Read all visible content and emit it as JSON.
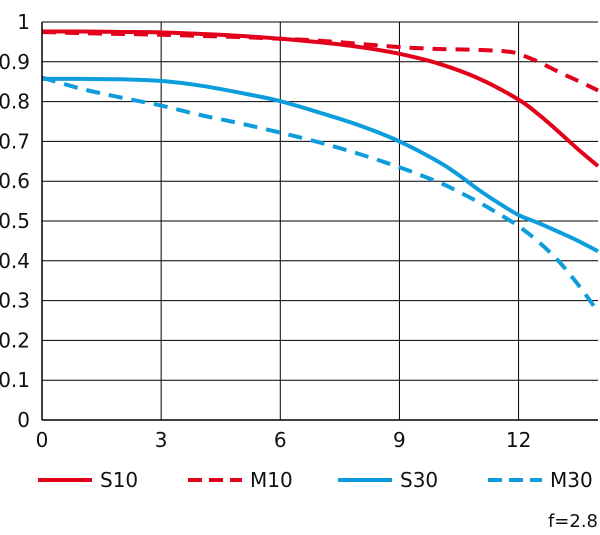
{
  "chart_data": {
    "type": "line",
    "xlim": [
      0,
      14
    ],
    "ylim": [
      0,
      1
    ],
    "x_ticks": [
      0,
      3,
      6,
      9,
      12
    ],
    "y_ticks": [
      0,
      0.1,
      0.2,
      0.3,
      0.4,
      0.5,
      0.6,
      0.7,
      0.8,
      0.9,
      1
    ],
    "x_tick_labels": [
      "0",
      "3",
      "6",
      "9",
      "12"
    ],
    "y_tick_labels": [
      "0",
      "0.1",
      "0.2",
      "0.3",
      "0.4",
      "0.5",
      "0.6",
      "0.7",
      "0.8",
      "0.9",
      "1"
    ],
    "grid": true,
    "legend_position": "bottom",
    "annotation": "f=2.8",
    "series": [
      {
        "name": "S10",
        "color": "#e3001b",
        "dash": "solid",
        "points": [
          [
            0,
            0.976
          ],
          [
            1,
            0.976
          ],
          [
            2,
            0.975
          ],
          [
            3,
            0.974
          ],
          [
            4,
            0.97
          ],
          [
            5,
            0.965
          ],
          [
            6,
            0.958
          ],
          [
            7,
            0.949
          ],
          [
            8,
            0.937
          ],
          [
            9,
            0.92
          ],
          [
            10,
            0.895
          ],
          [
            11,
            0.858
          ],
          [
            12,
            0.805
          ],
          [
            12.5,
            0.768
          ],
          [
            13,
            0.725
          ],
          [
            13.5,
            0.68
          ],
          [
            14,
            0.638
          ]
        ]
      },
      {
        "name": "M10",
        "color": "#e3001b",
        "dash": "dashed",
        "points": [
          [
            0,
            0.975
          ],
          [
            1,
            0.972
          ],
          [
            2,
            0.97
          ],
          [
            3,
            0.968
          ],
          [
            4,
            0.965
          ],
          [
            5,
            0.962
          ],
          [
            6,
            0.958
          ],
          [
            7,
            0.953
          ],
          [
            8,
            0.945
          ],
          [
            9,
            0.937
          ],
          [
            10,
            0.932
          ],
          [
            11,
            0.93
          ],
          [
            11.7,
            0.926
          ],
          [
            12,
            0.92
          ],
          [
            12.5,
            0.9
          ],
          [
            13,
            0.875
          ],
          [
            13.5,
            0.852
          ],
          [
            14,
            0.828
          ]
        ]
      },
      {
        "name": "S30",
        "color": "#0e9ddc",
        "dash": "solid",
        "points": [
          [
            0,
            0.857
          ],
          [
            1,
            0.857
          ],
          [
            2,
            0.856
          ],
          [
            3,
            0.852
          ],
          [
            4,
            0.84
          ],
          [
            5,
            0.822
          ],
          [
            6,
            0.801
          ],
          [
            7,
            0.772
          ],
          [
            8,
            0.74
          ],
          [
            9,
            0.7
          ],
          [
            10,
            0.648
          ],
          [
            10.5,
            0.615
          ],
          [
            11,
            0.578
          ],
          [
            11.5,
            0.545
          ],
          [
            12,
            0.515
          ],
          [
            12.5,
            0.495
          ],
          [
            13,
            0.473
          ],
          [
            13.5,
            0.45
          ],
          [
            14,
            0.424
          ]
        ]
      },
      {
        "name": "M30",
        "color": "#0e9ddc",
        "dash": "dashed",
        "points": [
          [
            0,
            0.86
          ],
          [
            1,
            0.832
          ],
          [
            2,
            0.81
          ],
          [
            3,
            0.79
          ],
          [
            4,
            0.766
          ],
          [
            5,
            0.745
          ],
          [
            6,
            0.722
          ],
          [
            7,
            0.697
          ],
          [
            8,
            0.668
          ],
          [
            9,
            0.635
          ],
          [
            10,
            0.597
          ],
          [
            10.5,
            0.573
          ],
          [
            11,
            0.547
          ],
          [
            11.5,
            0.518
          ],
          [
            12,
            0.487
          ],
          [
            12.5,
            0.448
          ],
          [
            13,
            0.4
          ],
          [
            13.5,
            0.34
          ],
          [
            14,
            0.272
          ]
        ]
      }
    ]
  }
}
